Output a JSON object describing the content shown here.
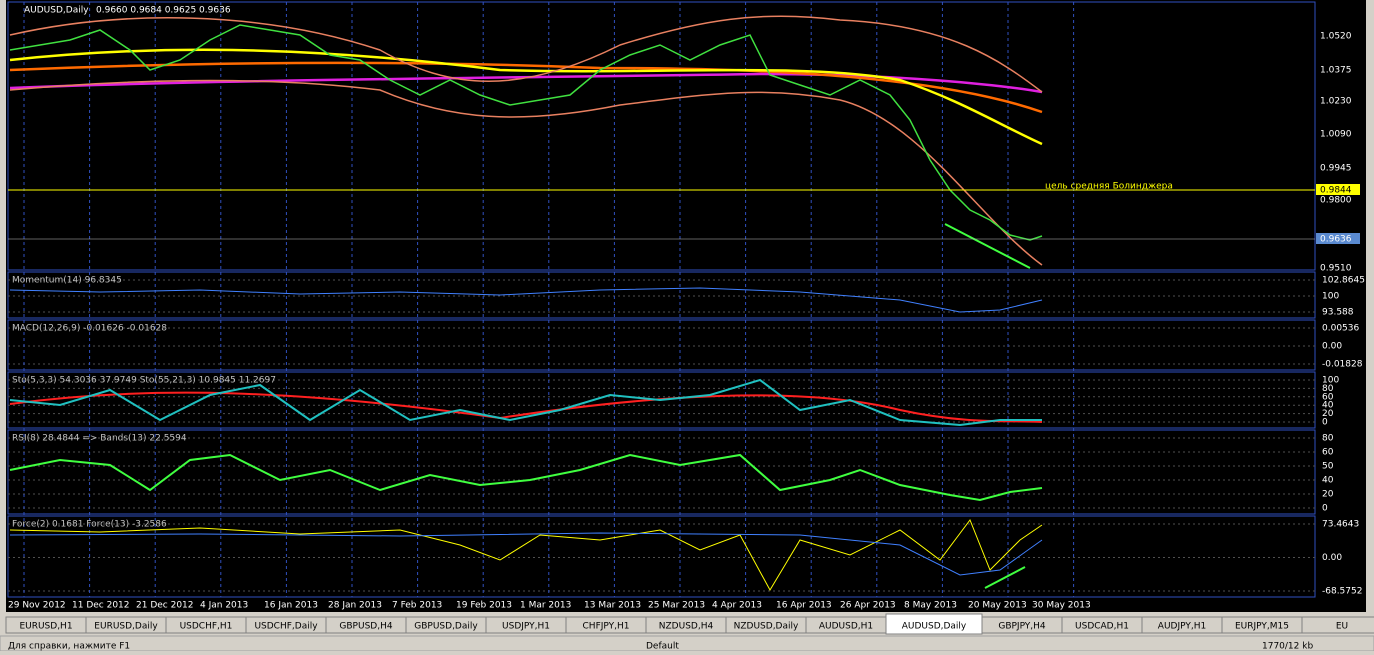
{
  "header": {
    "symbol": "AUDUSD,Daily",
    "ohlc": "0.9660 0.9684 0.9625 0.9636"
  },
  "main_panel": {
    "axis_labels": [
      "1.0520",
      "1.0375",
      "1.0230",
      "1.0090",
      "0.9945",
      "0.9800",
      "0.9510"
    ],
    "target_price": "0.9844",
    "current_price": "0.9636",
    "annotation": "цель средняя Болинджера"
  },
  "indicators": [
    {
      "label": "Momentum(14) 96.8345",
      "axis_labels": [
        "102.8645",
        "100",
        "93.588"
      ]
    },
    {
      "label": "MACD(12,26,9) -0.01626 -0.01628",
      "axis_labels": [
        "0.00536",
        "0.00",
        "-0.01828"
      ]
    },
    {
      "label": "Sto(5,3,3) 54.3036 37.9749  Sto(55,21,3) 10.9845 11.2697",
      "axis_labels": [
        "100",
        "80",
        "60",
        "40",
        "20",
        "0"
      ]
    },
    {
      "label": "RSI(8) 28.4844  => Bands(13) 22.5594",
      "axis_labels": [
        "80",
        "60",
        "50",
        "40",
        "20",
        "0"
      ]
    },
    {
      "label": "Force(2) 0.1681  Force(13) -3.2586",
      "axis_labels": [
        "73.4643",
        "0.00",
        "-68.5752"
      ]
    }
  ],
  "dates": [
    "29 Nov 2012",
    "11 Dec 2012",
    "21 Dec 2012",
    "4 Jan 2013",
    "16 Jan 2013",
    "28 Jan 2013",
    "7 Feb 2013",
    "19 Feb 2013",
    "1 Mar 2013",
    "13 Mar 2013",
    "25 Mar 2013",
    "4 Apr 2013",
    "16 Apr 2013",
    "26 Apr 2013",
    "8 May 2013",
    "20 May 2013",
    "30 May 2013"
  ],
  "tabs": [
    "EURUSD,H1",
    "EURUSD,Daily",
    "USDCHF,H1",
    "USDCHF,Daily",
    "GBPUSD,H4",
    "GBPUSD,Daily",
    "USDJPY,H1",
    "CHFJPY,H1",
    "NZDUSD,H4",
    "NZDUSD,Daily",
    "AUDUSD,H1",
    "AUDUSD,Daily",
    "GBPJPY,H4",
    "USDCAD,H1",
    "AUDJPY,H1",
    "EURJPY,M15",
    "EU"
  ],
  "active_tab": 11,
  "status": {
    "help": "Для справки, нажмите F1",
    "profile": "Default",
    "traffic": "1770/12 kb"
  }
}
